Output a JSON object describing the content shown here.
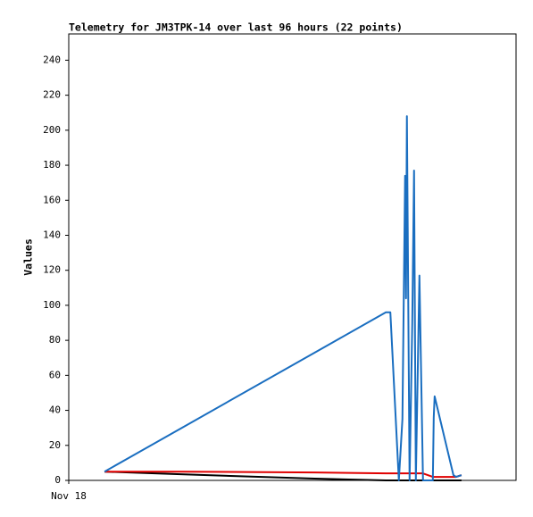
{
  "chart_data": {
    "type": "line",
    "title": "Telemetry for JM3TPK-14 over last 96 hours (22 points)",
    "ylabel": "Values",
    "x": [
      8,
      25,
      55,
      70.9,
      71.9,
      73.8,
      74.6,
      75.2,
      75.4,
      75.6,
      76.2,
      76.8,
      77.2,
      77.6,
      78.4,
      79.2,
      81.4,
      81.6,
      81.8,
      86,
      86.6,
      87.8
    ],
    "xlim": [
      0,
      100
    ],
    "xticks": [
      {
        "value": 0,
        "label": "Nov 18"
      }
    ],
    "ylim": [
      0,
      255
    ],
    "yticks": [
      0,
      20,
      40,
      60,
      80,
      100,
      120,
      140,
      160,
      180,
      200,
      220,
      240
    ],
    "series": [
      {
        "color": "#000000",
        "values": [
          5,
          3.5,
          1,
          0,
          0,
          0,
          0,
          0,
          0,
          0,
          0,
          0,
          0,
          0,
          0,
          0,
          0,
          0,
          0,
          0,
          0,
          0
        ]
      },
      {
        "color": "#e00000",
        "values": [
          5,
          5,
          4.5,
          4,
          4,
          4,
          4,
          4,
          4,
          4,
          4,
          4,
          4,
          4,
          4,
          4,
          2,
          2,
          2,
          2,
          2,
          3
        ]
      },
      {
        "color": "#1a6ec0",
        "values": [
          5,
          29.6,
          73,
          96,
          96,
          0,
          35,
          174,
          104,
          208,
          0,
          90,
          177,
          0,
          117,
          0,
          0,
          36,
          48,
          3,
          2,
          3
        ]
      }
    ]
  }
}
